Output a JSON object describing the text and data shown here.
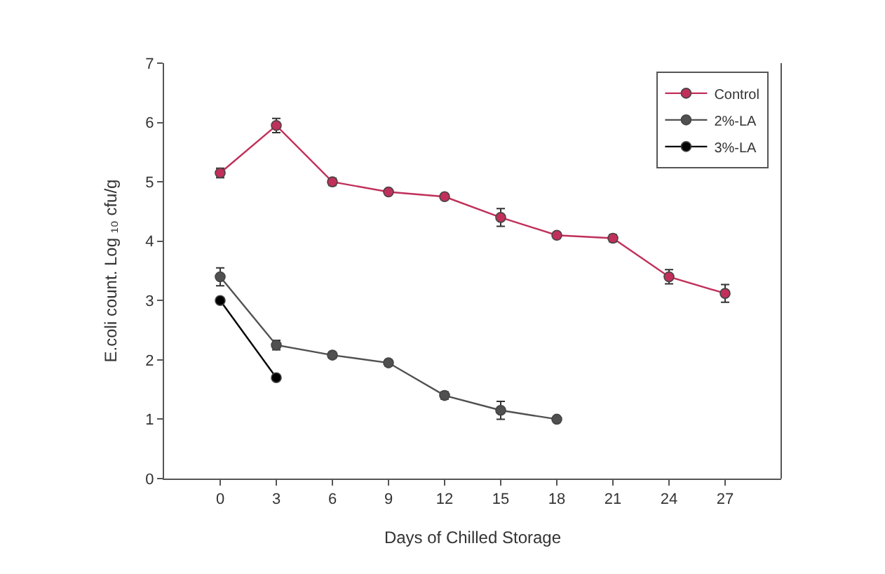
{
  "chart_data": {
    "type": "line",
    "xlabel": "Days of Chilled Storage",
    "ylabel": "E.coli count. Log ₁₀ cfu/g",
    "x": [
      0,
      3,
      6,
      9,
      12,
      15,
      18,
      21,
      24,
      27
    ],
    "series": [
      {
        "name": "Control",
        "color": "#c0305a",
        "values": [
          5.15,
          5.95,
          5.0,
          4.83,
          4.75,
          4.4,
          4.1,
          4.05,
          3.4,
          3.12
        ],
        "errors": [
          0.08,
          0.12,
          0.06,
          0.04,
          0.05,
          0.15,
          0.05,
          0.06,
          0.12,
          0.15
        ]
      },
      {
        "name": "2%-LA",
        "color": "#505050",
        "x": [
          0,
          3,
          6,
          9,
          12,
          15,
          18
        ],
        "values": [
          3.4,
          2.25,
          2.08,
          1.95,
          1.4,
          1.15,
          1.0
        ],
        "errors": [
          0.15,
          0.08,
          0.05,
          0.05,
          0.06,
          0.15,
          0.03
        ]
      },
      {
        "name": "3%-LA",
        "color": "#000000",
        "x": [
          0,
          3
        ],
        "values": [
          3.0,
          1.7
        ]
      }
    ],
    "xlim": [
      -3,
      30
    ],
    "xticks": [
      0,
      3,
      6,
      9,
      12,
      15,
      18,
      21,
      24,
      27
    ],
    "ylim": [
      0,
      7
    ],
    "yticks": [
      0,
      1,
      2,
      3,
      4,
      5,
      6,
      7
    ],
    "grid": false,
    "legend": "top right",
    "marker": "circle",
    "line_style": "solid"
  }
}
